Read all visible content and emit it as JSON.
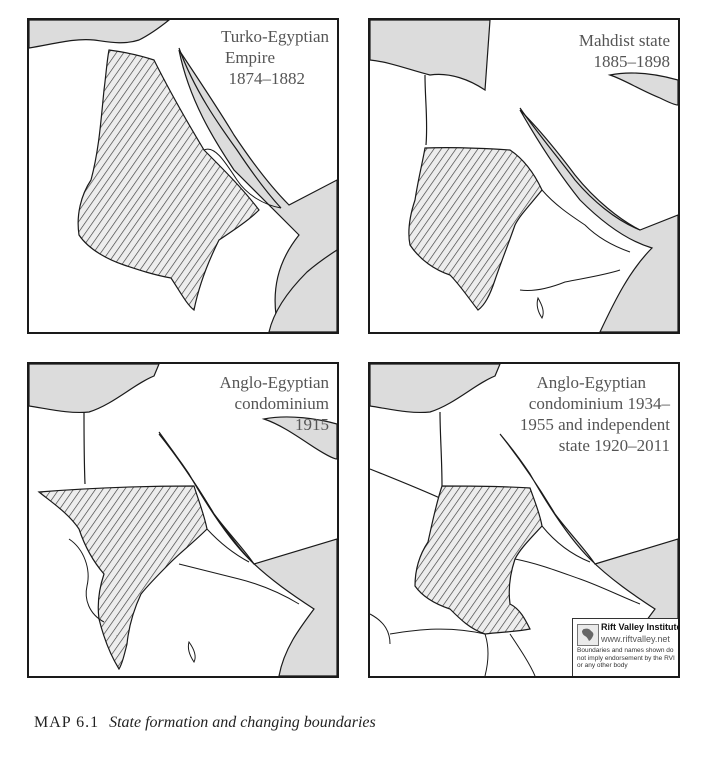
{
  "colors": {
    "land": "#dcdcdc",
    "border": "#1a1a1a",
    "hatch": "#3a3a3a",
    "title_text": "#555555"
  },
  "panels": [
    {
      "title_lines": [
        "Turko-Egyptian",
        "Empire",
        "1874–1882"
      ]
    },
    {
      "title_lines": [
        "Mahdist state",
        "1885–1898"
      ]
    },
    {
      "title_lines": [
        "Anglo-Egyptian",
        "condominium",
        "1915"
      ]
    },
    {
      "title_lines": [
        "Anglo-Egyptian",
        "condominium 1934–",
        "1955 and independent",
        "state 1920–2011"
      ]
    }
  ],
  "rvi_box": {
    "name": "Rift Valley Institute",
    "url": "www.riftvalley.net",
    "disclaimer": "Boundaries and names shown do not imply endorsement by the RVI or any other body",
    "logo_icon": "africa-outline-icon"
  },
  "caption": {
    "label": "MAP 6.1",
    "text": "State formation and changing boundaries"
  }
}
